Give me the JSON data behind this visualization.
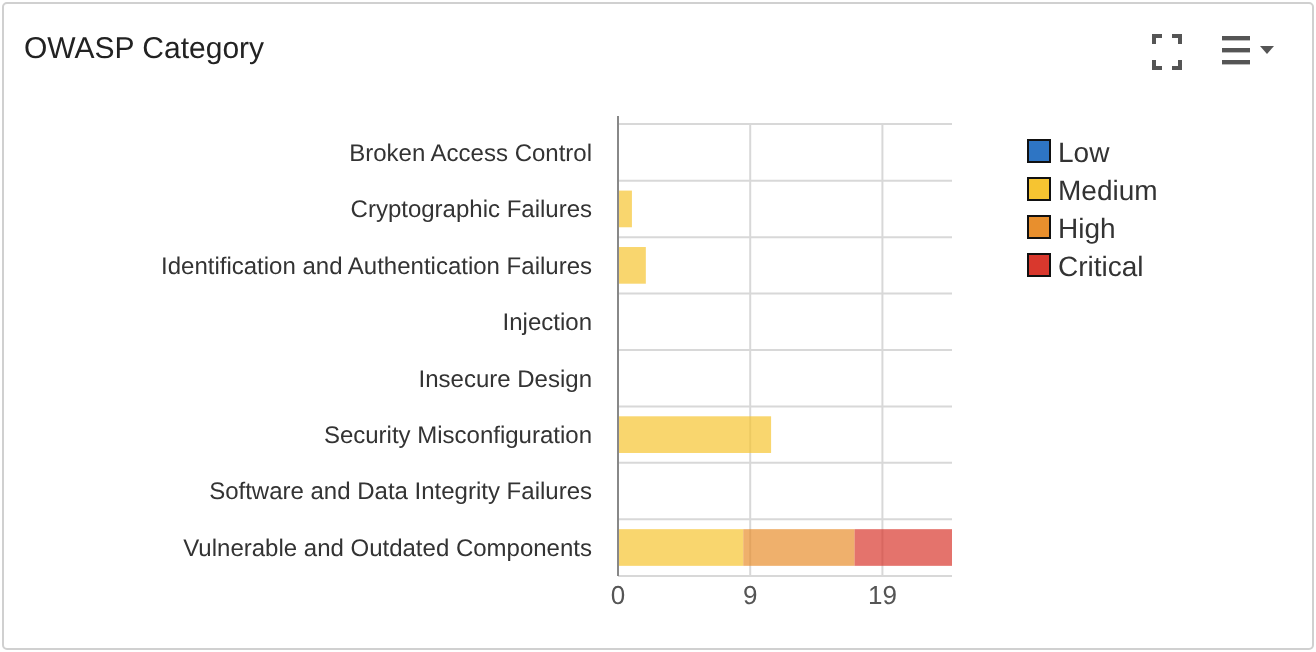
{
  "chart_data": {
    "type": "bar",
    "title": "OWASP Category",
    "orientation": "horizontal",
    "stacked": true,
    "categories": [
      "Broken Access Control",
      "Cryptographic Failures",
      "Identification and Authentication Failures",
      "Injection",
      "Insecure Design",
      "Security Misconfiguration",
      "Software and Data Integrity Failures",
      "Vulnerable and Outdated Components"
    ],
    "series": [
      {
        "name": "Low",
        "color": "#2e75c4",
        "values": [
          0,
          0,
          0,
          0,
          0,
          0,
          0,
          0
        ]
      },
      {
        "name": "Medium",
        "color": "#f6c431",
        "values": [
          0,
          1,
          2,
          0,
          0,
          11,
          0,
          9
        ]
      },
      {
        "name": "High",
        "color": "#e88f2d",
        "values": [
          0,
          0,
          0,
          0,
          0,
          0,
          0,
          8
        ]
      },
      {
        "name": "Critical",
        "color": "#d9382d",
        "values": [
          0,
          0,
          0,
          0,
          0,
          0,
          0,
          7
        ]
      }
    ],
    "xlim": [
      0,
      24
    ],
    "xticks": [
      0,
      {
        "value": 9.5,
        "label": "9"
      },
      19
    ],
    "grid": true,
    "legend": "right"
  }
}
